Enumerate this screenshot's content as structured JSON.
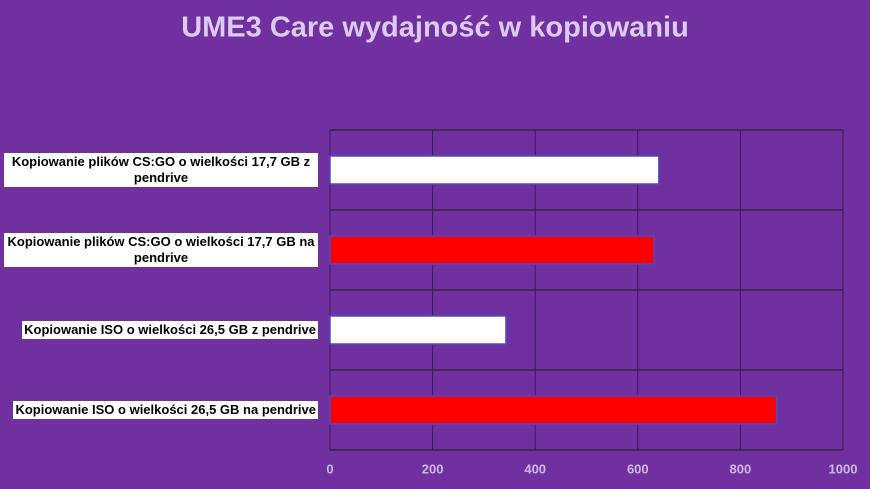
{
  "chart_data": {
    "type": "bar",
    "orientation": "horizontal",
    "title": "UME3 Care wydajność w kopiowaniu",
    "categories": [
      "Kopiowanie plików CS:GO o wielkości 17,7 GB z pendrive",
      "Kopiowanie plików CS:GO o wielkości 17,7 GB na pendrive",
      "Kopiowanie ISO o wielkości 26,5 GB z pendrive",
      "Kopiowanie ISO o wielkości 26,5 GB na pendrive"
    ],
    "values": [
      641,
      632,
      343,
      871
    ],
    "colors": [
      "#ffffff",
      "#ff0000",
      "#ffffff",
      "#ff0000"
    ],
    "xlim": [
      0,
      1000
    ],
    "xticks": [
      0,
      200,
      400,
      600,
      800,
      1000
    ],
    "grid": true
  }
}
